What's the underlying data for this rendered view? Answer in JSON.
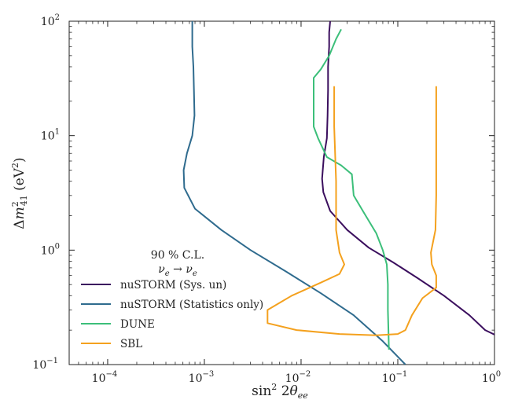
{
  "chart_data": {
    "type": "line",
    "xlabel": "sin² 2θ_ee",
    "ylabel": "Δm²_41 (eV²)",
    "xscale": "log",
    "yscale": "log",
    "xlim": [
      4e-05,
      1.0
    ],
    "ylim": [
      0.1,
      100
    ],
    "x_ticks": [
      {
        "value": 0.0001,
        "base": "10",
        "exp": "−4"
      },
      {
        "value": 0.001,
        "base": "10",
        "exp": "−3"
      },
      {
        "value": 0.01,
        "base": "10",
        "exp": "−2"
      },
      {
        "value": 0.1,
        "base": "10",
        "exp": "−1"
      },
      {
        "value": 1,
        "base": "10",
        "exp": "0"
      }
    ],
    "y_ticks": [
      {
        "value": 0.1,
        "base": "10",
        "exp": "−1"
      },
      {
        "value": 1,
        "base": "10",
        "exp": "0"
      },
      {
        "value": 10,
        "base": "10",
        "exp": "1"
      },
      {
        "value": 100,
        "base": "10",
        "exp": "2"
      }
    ],
    "annotations": [
      "90 % C.L.",
      "ν_e → ν_e"
    ],
    "legend_position": "lower-left",
    "grid": false,
    "series": [
      {
        "name": "nuSTORM (Sys. un)",
        "color": "#3b0f5e",
        "points": [
          [
            0.02,
            100
          ],
          [
            0.0195,
            80
          ],
          [
            0.0195,
            60
          ],
          [
            0.019,
            40
          ],
          [
            0.019,
            25
          ],
          [
            0.0188,
            15
          ],
          [
            0.0185,
            9.5
          ],
          [
            0.0172,
            6.5
          ],
          [
            0.0165,
            4.2
          ],
          [
            0.017,
            3.2
          ],
          [
            0.02,
            2.2
          ],
          [
            0.03,
            1.5
          ],
          [
            0.05,
            1.05
          ],
          [
            0.09,
            0.78
          ],
          [
            0.16,
            0.57
          ],
          [
            0.3,
            0.4
          ],
          [
            0.55,
            0.27
          ],
          [
            0.8,
            0.2
          ],
          [
            1.0,
            0.183
          ]
        ]
      },
      {
        "name": "nuSTORM (Statistics only)",
        "color": "#2f6b8e",
        "points": [
          [
            0.00075,
            100
          ],
          [
            0.00075,
            60
          ],
          [
            0.00077,
            40
          ],
          [
            0.00078,
            25
          ],
          [
            0.00079,
            15
          ],
          [
            0.00075,
            10
          ],
          [
            0.00066,
            7
          ],
          [
            0.00061,
            5
          ],
          [
            0.00062,
            3.5
          ],
          [
            0.0008,
            2.3
          ],
          [
            0.0015,
            1.5
          ],
          [
            0.003,
            1.0
          ],
          [
            0.007,
            0.65
          ],
          [
            0.016,
            0.42
          ],
          [
            0.035,
            0.27
          ],
          [
            0.07,
            0.16
          ],
          [
            0.12,
            0.1
          ]
        ]
      },
      {
        "name": "DUNE",
        "color": "#3cbf7a",
        "points": [
          [
            0.026,
            85
          ],
          [
            0.023,
            70
          ],
          [
            0.0195,
            50
          ],
          [
            0.016,
            38
          ],
          [
            0.0135,
            32
          ],
          [
            0.0135,
            22
          ],
          [
            0.0135,
            12
          ],
          [
            0.015,
            9.5
          ],
          [
            0.0185,
            6.5
          ],
          [
            0.026,
            5.5
          ],
          [
            0.0335,
            4.6
          ],
          [
            0.035,
            3.0
          ],
          [
            0.045,
            2.1
          ],
          [
            0.06,
            1.4
          ],
          [
            0.07,
            1.0
          ],
          [
            0.077,
            0.75
          ],
          [
            0.079,
            0.5
          ],
          [
            0.079,
            0.3
          ],
          [
            0.08,
            0.2
          ],
          [
            0.081,
            0.135
          ]
        ]
      },
      {
        "name": "SBL",
        "color": "#f4a11e",
        "points": [
          [
            0.022,
            27
          ],
          [
            0.022,
            12
          ],
          [
            0.023,
            4
          ],
          [
            0.023,
            1.5
          ],
          [
            0.025,
            0.95
          ],
          [
            0.028,
            0.75
          ],
          [
            0.025,
            0.62
          ],
          [
            0.016,
            0.52
          ],
          [
            0.008,
            0.4
          ],
          [
            0.0045,
            0.3
          ],
          [
            0.0045,
            0.23
          ],
          [
            0.009,
            0.2
          ],
          [
            0.025,
            0.185
          ],
          [
            0.06,
            0.18
          ],
          [
            0.1,
            0.185
          ],
          [
            0.12,
            0.2
          ],
          [
            0.14,
            0.27
          ],
          [
            0.18,
            0.38
          ],
          [
            0.25,
            0.47
          ],
          [
            0.25,
            0.6
          ],
          [
            0.225,
            0.75
          ],
          [
            0.22,
            0.95
          ],
          [
            0.245,
            1.5
          ],
          [
            0.25,
            3
          ],
          [
            0.25,
            10
          ],
          [
            0.25,
            27
          ]
        ]
      }
    ]
  }
}
